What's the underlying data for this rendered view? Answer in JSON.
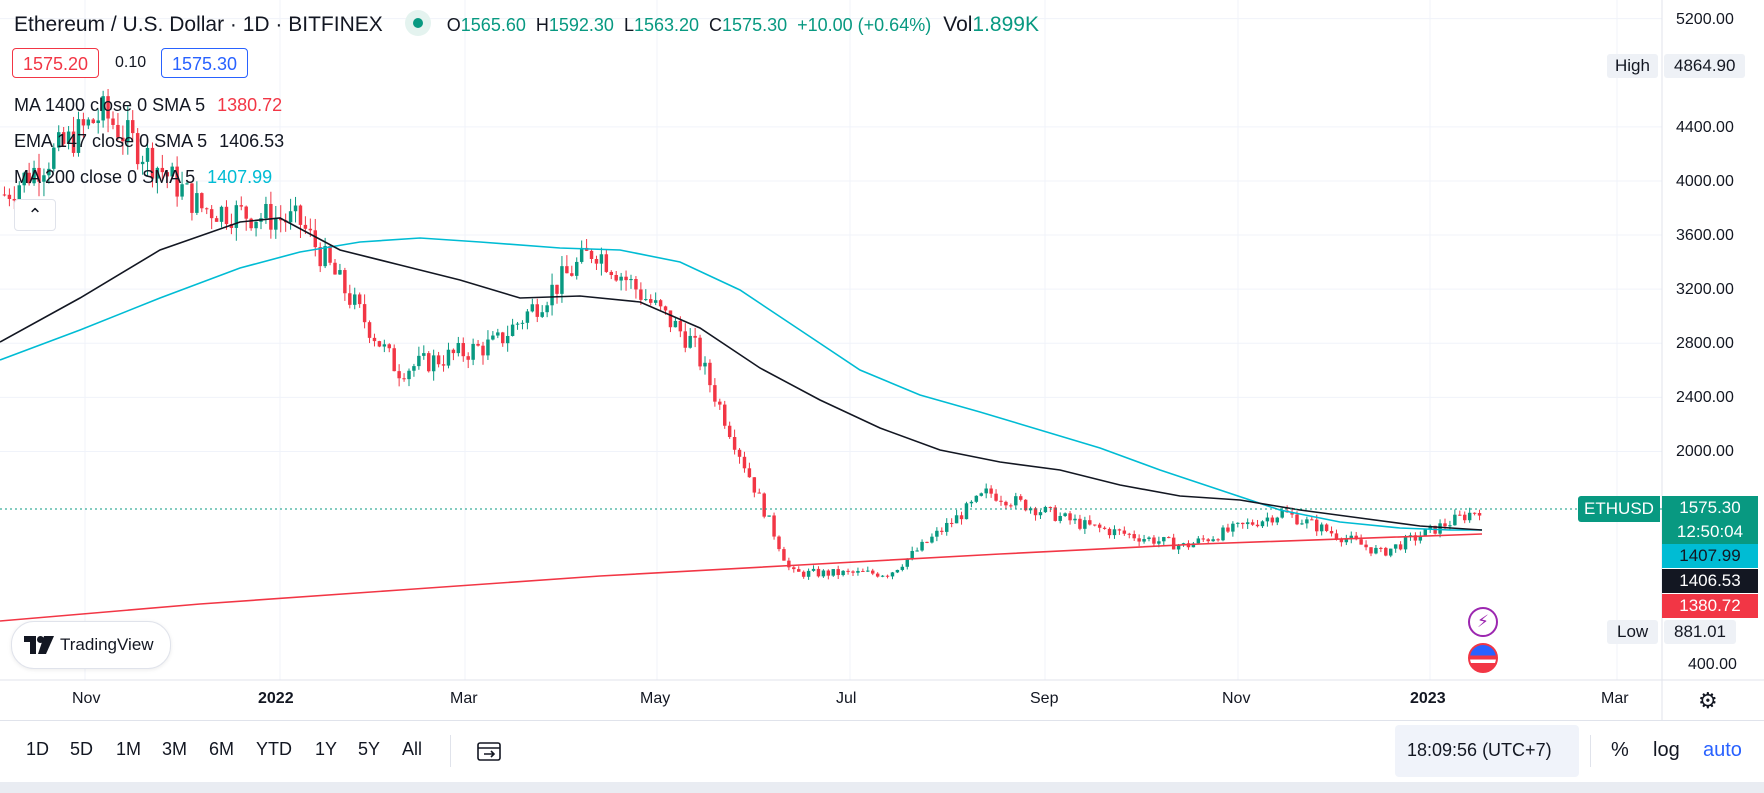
{
  "header": {
    "title": "Ethereum / U.S. Dollar · 1D · BITFINEX",
    "open_label": "O",
    "open": "1565.60",
    "high_label": "H",
    "high": "1592.30",
    "low_label": "L",
    "low": "1563.20",
    "close_label": "C",
    "close": "1575.30",
    "change": "+10.00 (+0.64%)",
    "vol_label": "Vol",
    "vol": "1.899K"
  },
  "quote": {
    "bid": "1575.20",
    "spread": "0.10",
    "ask": "1575.30"
  },
  "indicators": [
    {
      "label": "MA 1400 close 0 SMA 5",
      "value": "1380.72",
      "color": "#f23645"
    },
    {
      "label": "EMA 147 close 0 SMA 5",
      "value": "1406.53",
      "color": "#131722"
    },
    {
      "label": "MA 200 close 0 SMA 5",
      "value": "1407.99",
      "color": "#00bcd4"
    }
  ],
  "collapse_icon": "chevron-up-icon",
  "price_axis": {
    "ticks": [
      "5200.00",
      "4400.00",
      "4000.00",
      "3600.00",
      "3200.00",
      "2800.00",
      "2400.00",
      "2000.00",
      "400.00"
    ],
    "high_label": "High",
    "high_value": "4864.90",
    "low_label": "Low",
    "low_value": "881.01",
    "symbol_tag": "ETHUSD",
    "last_price": "1575.30",
    "countdown": "12:50:04",
    "tag_ma200": "1407.99",
    "tag_ema": "1406.53",
    "tag_ma1400": "1380.72"
  },
  "time_axis": {
    "labels": [
      "Nov",
      "2022",
      "Mar",
      "May",
      "Jul",
      "Sep",
      "Nov",
      "2023",
      "Mar"
    ]
  },
  "branding": {
    "logo_text": "TradingView"
  },
  "toolbar": {
    "ranges": [
      "1D",
      "5D",
      "1M",
      "3M",
      "6M",
      "YTD",
      "1Y",
      "5Y",
      "All"
    ],
    "compare_icon": "calendar-range-icon",
    "clock": "18:09:56 (UTC+7)",
    "percent_label": "%",
    "log_label": "log",
    "auto_label": "auto"
  },
  "colors": {
    "up": "#089981",
    "down": "#f23645",
    "ma200": "#00bcd4",
    "ema147": "#131722",
    "ma1400": "#f23645",
    "accent": "#2962ff"
  },
  "chart_data": {
    "type": "candlestick",
    "symbol": "ETHUSD",
    "timeframe": "1D",
    "x_axis_ticks": [
      "Nov",
      "2022",
      "Mar",
      "May",
      "Jul",
      "Sep",
      "Nov",
      "2023",
      "Mar"
    ],
    "y_axis_ticks": [
      5200,
      4400,
      4000,
      3600,
      3200,
      2800,
      2400,
      2000,
      400
    ],
    "series_close_approx": [
      {
        "x": "Oct 2021",
        "y": 3900
      },
      {
        "x": "Nov 2021",
        "y": 4500
      },
      {
        "x": "Dec 2021",
        "y": 3800
      },
      {
        "x": "Jan 2022",
        "y": 3700
      },
      {
        "x": "Feb 2022",
        "y": 2600
      },
      {
        "x": "Mar 2022",
        "y": 2800
      },
      {
        "x": "Apr 2022",
        "y": 3500
      },
      {
        "x": "May 2022",
        "y": 2800
      },
      {
        "x": "Jun 2022",
        "y": 1100
      },
      {
        "x": "Jul 2022",
        "y": 1100
      },
      {
        "x": "Aug 2022",
        "y": 1700
      },
      {
        "x": "Sep 2022",
        "y": 1450
      },
      {
        "x": "Oct 2022",
        "y": 1300
      },
      {
        "x": "Nov 2022",
        "y": 1550
      },
      {
        "x": "Dec 2022",
        "y": 1250
      },
      {
        "x": "Jan 2023",
        "y": 1575.3
      }
    ],
    "moving_averages": [
      {
        "name": "MA 1400",
        "last": 1380.72
      },
      {
        "name": "EMA 147",
        "last": 1406.53
      },
      {
        "name": "MA 200",
        "last": 1407.99
      }
    ],
    "high": 4864.9,
    "low": 881.01,
    "last": 1575.3
  }
}
